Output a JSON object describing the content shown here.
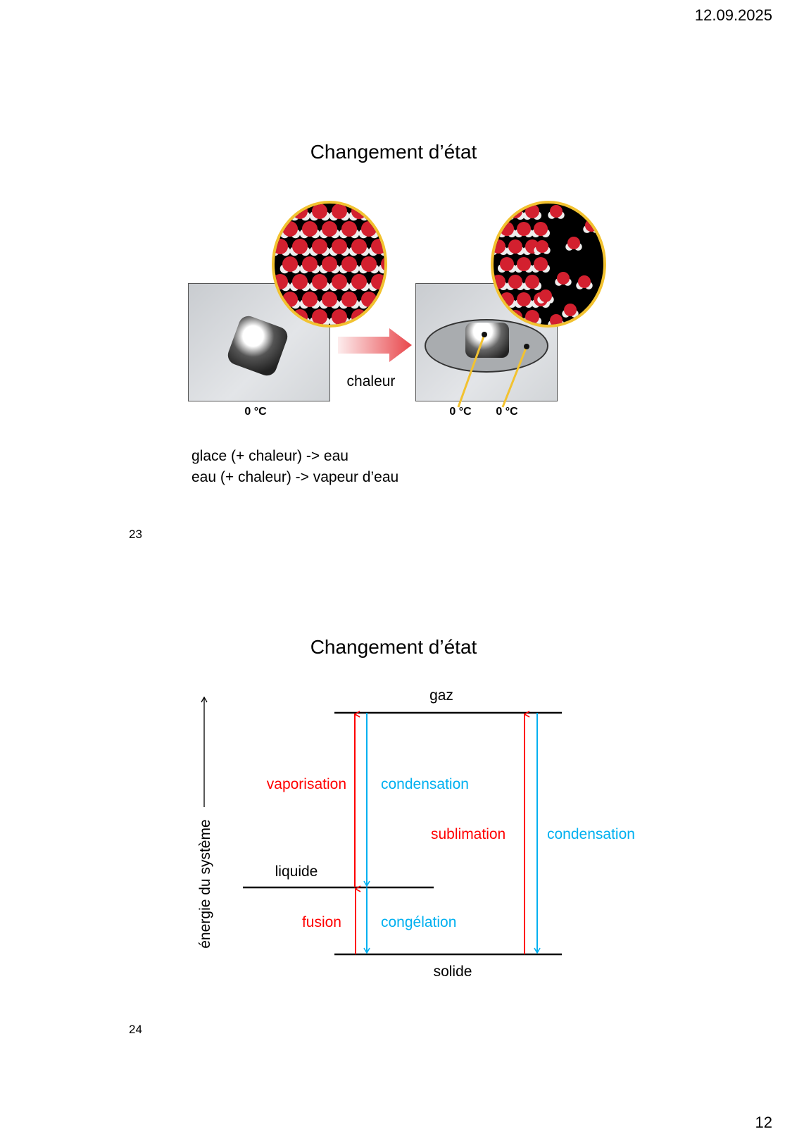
{
  "header": {
    "date": "12.09.2025"
  },
  "slides": [
    {
      "number": "23",
      "title": "Changement d’état",
      "figure": {
        "arrow_label": "chaleur",
        "temperatures": [
          "0 °C",
          "0 °C",
          "0 °C"
        ],
        "colors": {
          "arrow": "#e8464b",
          "ring": "#f2c230",
          "oxygen": "#d3202f",
          "hydrogen": "#eeeeee"
        }
      },
      "lines": [
        "glace (+ chaleur) -> eau",
        "eau (+ chaleur) -> vapeur d’eau"
      ]
    },
    {
      "number": "24",
      "title": "Changement d’état",
      "diagram": {
        "axis_label": "énergie du système",
        "levels": {
          "gas": "gaz",
          "liquid": "liquide",
          "solid": "solide"
        },
        "transitions": {
          "vaporisation": "vaporisation",
          "condensation_gas_liquid": "condensation",
          "sublimation": "sublimation",
          "condensation_gas_solid": "condensation",
          "fusion": "fusion",
          "congelation": "congélation"
        },
        "colors": {
          "endothermic": "#ff0000",
          "exothermic": "#00b0f0"
        }
      }
    }
  ],
  "footer": {
    "page_number": "12"
  }
}
